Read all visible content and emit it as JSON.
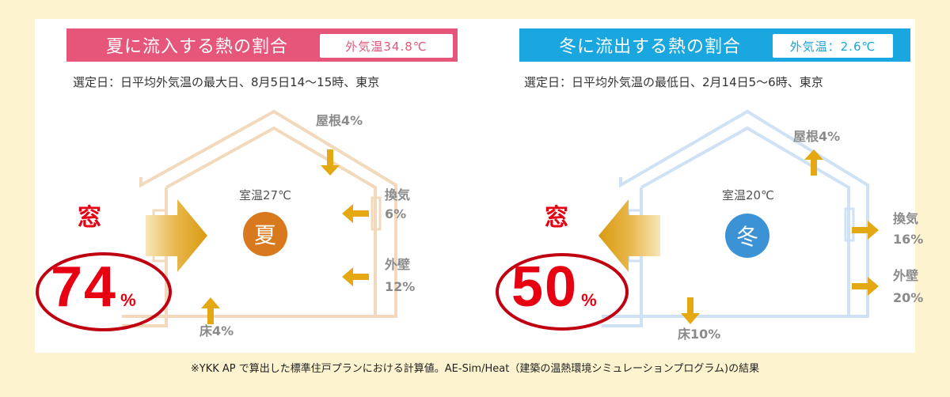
{
  "summer": {
    "title": "夏に流入する熱の割合",
    "outside_temp": "外気温34.8℃",
    "subtitle": "選定日：日平均外気温の最大日、8月5日14～15時、東京",
    "room_temp": "室温27℃",
    "season_char": "夏",
    "window_label": "窓",
    "window_percent": "74",
    "percent_sign": "%",
    "roof_label": "屋根4%",
    "vent_name": "換気",
    "vent_value": "6%",
    "wall_name": "外壁",
    "wall_value": "12%",
    "floor_label": "床4%",
    "title_color": "#e6557a",
    "house_color": "#f2d9bb",
    "arrow_color": "#e3a812",
    "circle_color": "#d9791d"
  },
  "winter": {
    "title": "冬に流出する熱の割合",
    "outside_temp": "外気温：2.6℃",
    "subtitle": "選定日：日平均外気温の最低日、2月14日5～6時、東京",
    "room_temp": "室温20℃",
    "season_char": "冬",
    "window_label": "窓",
    "window_percent": "50",
    "percent_sign": "%",
    "roof_label": "屋根4%",
    "vent_name": "換気",
    "vent_value": "16%",
    "wall_name": "外壁",
    "wall_value": "20%",
    "floor_label": "床10%",
    "title_color": "#1aa6de",
    "house_color": "#cfe2f5",
    "arrow_color": "#e3a812",
    "circle_color": "#3b93d6"
  },
  "footnote": "※YKK AP で算出した標準住戸プランにおける計算値。AE-Sim/Heat（建築の温熱環境シミュレーションプログラム)の結果",
  "chart_data": [
    {
      "type": "diagram",
      "title": "夏に流入する熱の割合",
      "categories": [
        "窓",
        "屋根",
        "換気",
        "外壁",
        "床"
      ],
      "values": [
        74,
        4,
        6,
        12,
        4
      ],
      "unit": "%"
    },
    {
      "type": "diagram",
      "title": "冬に流出する熱の割合",
      "categories": [
        "窓",
        "屋根",
        "換気",
        "外壁",
        "床"
      ],
      "values": [
        50,
        4,
        16,
        20,
        10
      ],
      "unit": "%"
    }
  ]
}
